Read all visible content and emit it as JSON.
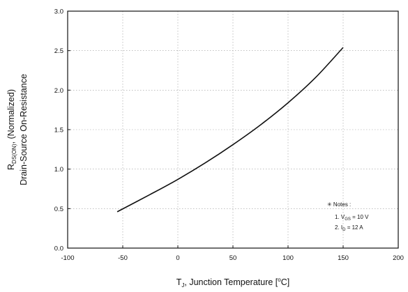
{
  "chart_data": {
    "type": "line",
    "x_range": [
      -100,
      200
    ],
    "y_range": [
      0.0,
      3.0
    ],
    "x_ticks": [
      "-100",
      "-50",
      "0",
      "50",
      "100",
      "150",
      "200"
    ],
    "y_ticks": [
      "0.0",
      "0.5",
      "1.0",
      "1.5",
      "2.0",
      "2.5",
      "3.0"
    ],
    "grid": true,
    "series": [
      {
        "x": [
          -55,
          -25,
          0,
          25,
          50,
          75,
          100,
          125,
          150
        ],
        "y": [
          0.46,
          0.68,
          0.87,
          1.08,
          1.31,
          1.56,
          1.84,
          2.16,
          2.54
        ],
        "color": "#111111"
      }
    ],
    "xlabel": {
      "main": "T",
      "sub": "J",
      "rest": ", Junction Temperature [",
      "degree": "o",
      "unit": "C]"
    },
    "ylabel": {
      "line1_main": "R",
      "line1_sub": "DS(ON)",
      "line1_rest": ", (Normalized)",
      "line2": "Drain-Source On-Resistance"
    },
    "notes": {
      "title": "✳ Notes :",
      "note1_prefix": "1. V",
      "note1_sub": "GS",
      "note1_rest": " = 10 V",
      "note2_prefix": "2. I",
      "note2_sub": "D",
      "note2_rest": " = 12 A"
    }
  }
}
